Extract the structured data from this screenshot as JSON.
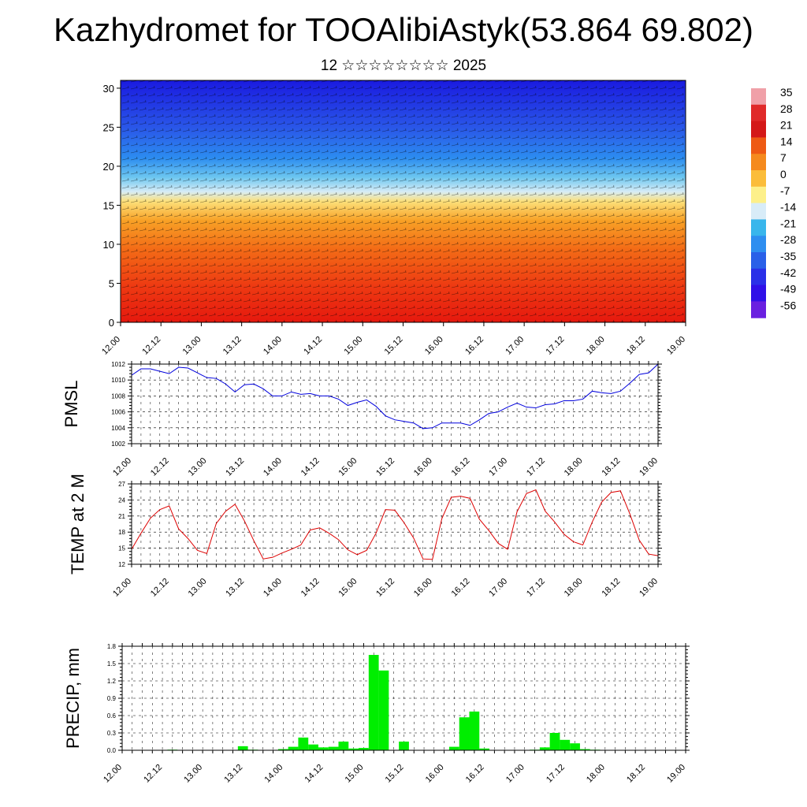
{
  "title": "Kazhydromet for TOOAlibiAstyk(53.864 69.802)",
  "subtitle": "12 ☆☆☆☆☆☆☆☆ 2025",
  "time_labels": [
    "12.00",
    "12.12",
    "13.00",
    "13.12",
    "14.00",
    "14.12",
    "15.00",
    "15.12",
    "16.00",
    "16.12",
    "17.00",
    "17.12",
    "18.00",
    "18.12",
    "19.00"
  ],
  "colorbar": {
    "labels": [
      "35",
      "28",
      "21",
      "14",
      "7",
      "0",
      "-7",
      "-14",
      "-21",
      "-28",
      "-35",
      "-42",
      "-49",
      "-56"
    ],
    "colors": [
      "#f0a0a8",
      "#e02a2a",
      "#d41818",
      "#ee5a14",
      "#f58a1e",
      "#fbbd3a",
      "#fdf08a",
      "#d8ecf8",
      "#39b6ec",
      "#2e8ef0",
      "#2a60e8",
      "#2a30e8",
      "#3010e8",
      "#6a20e0"
    ]
  },
  "chart_data": [
    {
      "type": "heatmap",
      "title": "",
      "ylabel": "",
      "yticks": [
        0,
        5,
        10,
        15,
        20,
        25,
        30
      ],
      "ylim": [
        0,
        31
      ],
      "x_categories": [
        "12.00",
        "12.12",
        "13.00",
        "13.12",
        "14.00",
        "14.12",
        "15.00",
        "15.12",
        "16.00",
        "16.12",
        "17.00",
        "17.12",
        "18.00",
        "18.12",
        "19.00"
      ],
      "value_range": [
        -56,
        35
      ],
      "grid": false
    },
    {
      "type": "line",
      "ylabel": "PMSL",
      "ylim": [
        1002,
        1012
      ],
      "yticks": [
        "1002",
        "1004",
        "1006",
        "1008",
        "1010",
        "1012"
      ],
      "color": "#0000dd",
      "x": [
        "12.00",
        "12.03",
        "12.06",
        "12.09",
        "12.12",
        "12.15",
        "12.18",
        "12.21",
        "13.00",
        "13.03",
        "13.06",
        "13.09",
        "13.12",
        "13.15",
        "13.18",
        "13.21",
        "14.00",
        "14.03",
        "14.06",
        "14.09",
        "14.12",
        "14.15",
        "14.18",
        "14.21",
        "15.00",
        "15.03",
        "15.06",
        "15.09",
        "15.12",
        "15.15",
        "15.18",
        "15.21",
        "16.00",
        "16.03",
        "16.06",
        "16.09",
        "16.12",
        "16.15",
        "16.18",
        "16.21",
        "17.00",
        "17.03",
        "17.06",
        "17.09",
        "17.12",
        "17.15",
        "17.18",
        "17.21",
        "18.00",
        "18.03",
        "18.06",
        "18.09",
        "18.12",
        "18.15",
        "18.18",
        "18.21",
        "19.00"
      ],
      "values": [
        1010.6,
        1011.4,
        1011.4,
        1011.1,
        1010.8,
        1011.6,
        1011.5,
        1010.9,
        1010.3,
        1010.2,
        1009.5,
        1008.5,
        1009.4,
        1009.5,
        1008.9,
        1008.0,
        1008.0,
        1008.5,
        1008.2,
        1008.3,
        1008.0,
        1008.0,
        1007.6,
        1006.8,
        1007.2,
        1007.5,
        1006.7,
        1005.5,
        1005.0,
        1004.8,
        1004.6,
        1003.9,
        1004.0,
        1004.6,
        1004.6,
        1004.6,
        1004.3,
        1005.0,
        1005.8,
        1006.0,
        1006.6,
        1007.1,
        1006.6,
        1006.5,
        1006.9,
        1007.0,
        1007.4,
        1007.4,
        1007.6,
        1008.6,
        1008.4,
        1008.3,
        1008.6,
        1009.6,
        1010.7,
        1010.9,
        1012.0
      ],
      "grid": true
    },
    {
      "type": "line",
      "ylabel": "TEMP at 2 M",
      "ylim": [
        12,
        27
      ],
      "yticks": [
        "12",
        "15",
        "18",
        "21",
        "24",
        "27"
      ],
      "color": "#dd0000",
      "x": [
        "12.00",
        "12.03",
        "12.06",
        "12.09",
        "12.12",
        "12.15",
        "12.18",
        "12.21",
        "13.00",
        "13.03",
        "13.06",
        "13.09",
        "13.12",
        "13.15",
        "13.18",
        "13.21",
        "14.00",
        "14.03",
        "14.06",
        "14.09",
        "14.12",
        "14.15",
        "14.18",
        "14.21",
        "15.00",
        "15.03",
        "15.06",
        "15.09",
        "15.12",
        "15.15",
        "15.18",
        "15.21",
        "16.00",
        "16.03",
        "16.06",
        "16.09",
        "16.12",
        "16.15",
        "16.18",
        "16.21",
        "17.00",
        "17.03",
        "17.06",
        "17.09",
        "17.12",
        "17.15",
        "17.18",
        "17.21",
        "18.00",
        "18.03",
        "18.06",
        "18.09",
        "18.12",
        "18.15",
        "18.18",
        "18.21",
        "19.00"
      ],
      "values": [
        14.8,
        17.8,
        20.6,
        22.2,
        22.9,
        18.6,
        16.8,
        14.6,
        14.0,
        19.6,
        21.9,
        23.2,
        20.1,
        16.4,
        13.0,
        13.3,
        14.1,
        14.8,
        15.6,
        18.4,
        18.8,
        17.8,
        16.6,
        14.7,
        13.8,
        14.6,
        17.8,
        22.2,
        22.1,
        19.7,
        16.9,
        13.0,
        12.9,
        20.5,
        24.5,
        24.7,
        24.3,
        20.4,
        18.3,
        15.9,
        14.8,
        21.8,
        25.2,
        25.9,
        21.9,
        19.9,
        17.6,
        16.2,
        15.6,
        19.9,
        23.6,
        25.4,
        25.7,
        21.4,
        16.5,
        13.9,
        13.6
      ],
      "grid": true
    },
    {
      "type": "bar",
      "ylabel": "PRECIP, mm",
      "ylim": [
        0,
        1.8
      ],
      "yticks": [
        "0.0",
        "0.3",
        "0.6",
        "0.9",
        "1.2",
        "1.5",
        "1.8"
      ],
      "color": "#00ee00",
      "x": [
        "12.00",
        "12.03",
        "12.06",
        "12.09",
        "12.12",
        "12.15",
        "12.18",
        "12.21",
        "13.00",
        "13.03",
        "13.06",
        "13.09",
        "13.12",
        "13.15",
        "13.18",
        "13.21",
        "14.00",
        "14.03",
        "14.06",
        "14.09",
        "14.12",
        "14.15",
        "14.18",
        "14.21",
        "15.00",
        "15.03",
        "15.06",
        "15.09",
        "15.12",
        "15.15",
        "15.18",
        "15.21",
        "16.00",
        "16.03",
        "16.06",
        "16.09",
        "16.12",
        "16.15",
        "16.18",
        "16.21",
        "17.00",
        "17.03",
        "17.06",
        "17.09",
        "17.12",
        "17.15",
        "17.18",
        "17.21",
        "18.00",
        "18.03",
        "18.06",
        "18.09",
        "18.12",
        "18.15",
        "18.18",
        "18.21",
        "19.00"
      ],
      "values": [
        0,
        0,
        0,
        0,
        0,
        0.01,
        0,
        0,
        0,
        0,
        0,
        0,
        0.07,
        0.01,
        0,
        0,
        0.02,
        0.06,
        0.22,
        0.1,
        0.05,
        0.06,
        0.15,
        0.03,
        0.04,
        1.65,
        1.38,
        0,
        0.15,
        0,
        0,
        0,
        0,
        0.06,
        0.57,
        0.67,
        0.03,
        0,
        0,
        0,
        0,
        0.01,
        0.05,
        0.3,
        0.18,
        0.12,
        0.02,
        0.01,
        0,
        0,
        0,
        0,
        0,
        0,
        0,
        0,
        0
      ],
      "grid": true
    }
  ]
}
